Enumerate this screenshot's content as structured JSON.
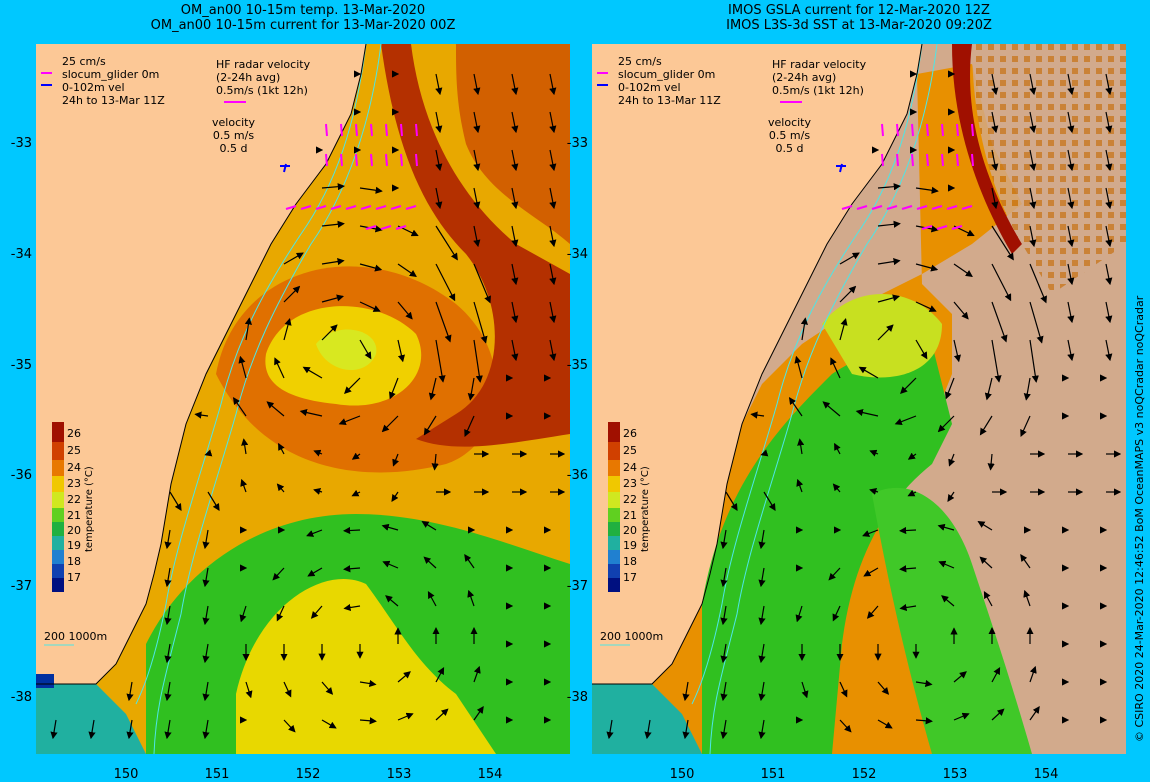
{
  "titles": {
    "left_line1": "OM_an00 10-15m temp. 13-Mar-2020",
    "left_line2": "OM_an00 10-15m current for 13-Mar-2020 00Z",
    "right_line1": "IMOS GSLA current for 12-Mar-2020 12Z",
    "right_line2": "IMOS L3S-3d SST at 13-Mar-2020 09:20Z"
  },
  "axes": {
    "lat_labels": [
      "-33",
      "-34",
      "-35",
      "-36",
      "-37",
      "-38"
    ],
    "lon_labels": [
      "150",
      "151",
      "152",
      "153",
      "154"
    ]
  },
  "legend": {
    "scale": "25 cm/s",
    "glider": "slocum_glider 0m",
    "vel": "0-102m vel",
    "period": "24h to 13-Mar 11Z",
    "hf_title": "HF radar velocity",
    "hf_avg": "(2-24h avg)",
    "hf_speed": "0.5m/s (1kt 12h)",
    "velocity": "velocity",
    "vel_speed": "0.5 m/s",
    "vel_days": "0.5 d",
    "isobaths": "200  1000m"
  },
  "colorbar": {
    "ticks": [
      "26",
      "25",
      "24",
      "23",
      "22",
      "21",
      "20",
      "19",
      "18",
      "17"
    ],
    "label": "temperature (°C)"
  },
  "credit": "© CSIRO 2020  24-Mar-2020 12:46:52 BoM OceanMAPS v3 noQCradar noQCradar",
  "colors": {
    "background": "#00c8ff",
    "land": "#fcc896",
    "cloud_mask": "#d2aa8c",
    "hf_radar": "#ff00ff",
    "glider": "#0000ff",
    "isobath": "#4de6e6"
  }
}
